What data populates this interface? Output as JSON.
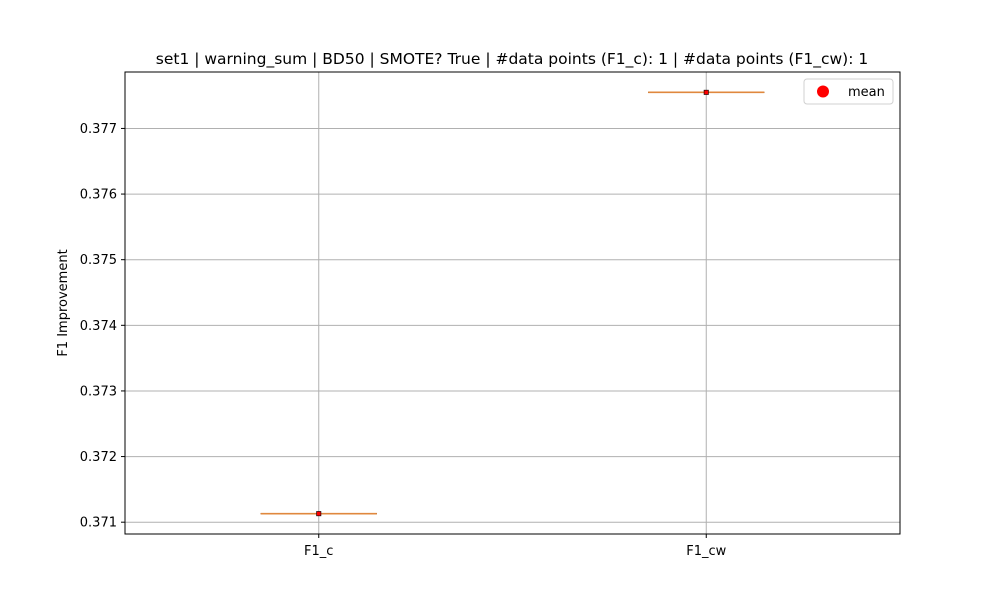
{
  "chart_data": {
    "type": "box",
    "title": "set1 | warning_sum | BD50 | SMOTE? True | #data points (F1_c): 1 | #data points (F1_cw): 1",
    "xlabel": "",
    "ylabel": "F1 Improvement",
    "categories": [
      "F1_c",
      "F1_cw"
    ],
    "values": [
      0.37113,
      0.37755
    ],
    "means": [
      0.37113,
      0.37755
    ],
    "ylim": [
      0.37082,
      0.37786
    ],
    "yticks": [
      0.371,
      0.372,
      0.373,
      0.374,
      0.375,
      0.376,
      0.377
    ],
    "ytick_labels": [
      "0.371",
      "0.372",
      "0.373",
      "0.374",
      "0.375",
      "0.376",
      "0.377"
    ],
    "grid": true,
    "legend": {
      "position": "top-right",
      "entries": [
        "mean"
      ]
    },
    "colors": {
      "median": "#e0883e",
      "mean": "#ff0000",
      "grid": "#b0b0b0",
      "axis": "#000000"
    }
  }
}
